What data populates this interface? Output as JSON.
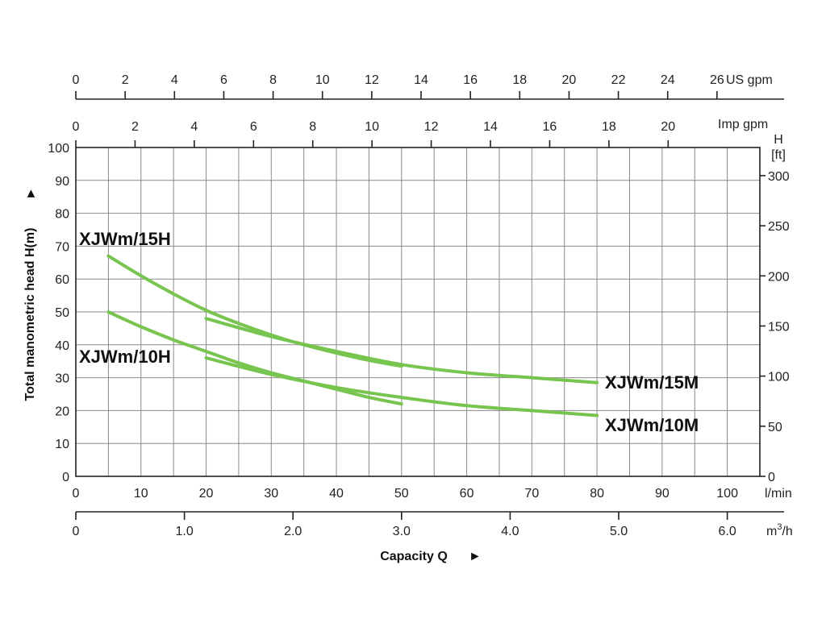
{
  "chart_data": {
    "type": "line",
    "title": "",
    "ylabel": "Total manometric head H(m)",
    "ylabel_arrow": "►",
    "xlabel": "Capacity Q",
    "xlabel_arrow": "►",
    "xlim": [
      0,
      105
    ],
    "ylim": [
      0,
      100
    ],
    "grid": true,
    "line_color": "#77c44f",
    "y_ticks_m": [
      "0",
      "10",
      "20",
      "30",
      "40",
      "50",
      "60",
      "70",
      "80",
      "90",
      "100"
    ],
    "x_ticks_lmin": [
      "0",
      "10",
      "20",
      "30",
      "40",
      "50",
      "60",
      "70",
      "80",
      "90",
      "100"
    ],
    "x_unit_lmin": "l/min",
    "x_ticks_m3h": [
      "0",
      "1.0",
      "2.0",
      "3.0",
      "4.0",
      "5.0",
      "6.0"
    ],
    "x_unit_m3h": "m",
    "x_unit_m3h_sup": "3",
    "x_unit_m3h_tail": "/h",
    "x_ticks_usgpm": [
      "0",
      "2",
      "4",
      "6",
      "8",
      "10",
      "12",
      "14",
      "16",
      "18",
      "20",
      "22",
      "24",
      "26"
    ],
    "x_unit_usgpm": "US gpm",
    "x_ticks_impgpm": [
      "0",
      "2",
      "4",
      "6",
      "8",
      "10",
      "12",
      "14",
      "16",
      "18",
      "20"
    ],
    "x_unit_impgpm": "Imp gpm",
    "y_ticks_ft": [
      "0",
      "50",
      "100",
      "150",
      "200",
      "250",
      "300"
    ],
    "y_unit_ft_top": "H",
    "y_unit_ft_bottom": "[ft]",
    "series": [
      {
        "name": "XJWm/15H",
        "x": [
          5,
          10,
          15,
          20,
          25,
          30,
          35,
          40,
          45,
          50
        ],
        "y": [
          67,
          61,
          55.5,
          50.5,
          46.5,
          43,
          40,
          37.5,
          35.3,
          33.5
        ]
      },
      {
        "name": "XJWm/15M",
        "x": [
          20,
          30,
          40,
          50,
          60,
          70,
          80
        ],
        "y": [
          48,
          42.5,
          38,
          34,
          31.5,
          30,
          28.5
        ]
      },
      {
        "name": "XJWm/10H",
        "x": [
          5,
          10,
          15,
          20,
          25,
          30,
          35,
          40,
          45,
          50
        ],
        "y": [
          50,
          45.5,
          41.5,
          38,
          34.5,
          31.5,
          29,
          26.5,
          24,
          22
        ]
      },
      {
        "name": "XJWm/10M",
        "x": [
          20,
          30,
          40,
          50,
          60,
          70,
          80
        ],
        "y": [
          36,
          31,
          27,
          24,
          21.5,
          20,
          18.5
        ]
      }
    ]
  }
}
